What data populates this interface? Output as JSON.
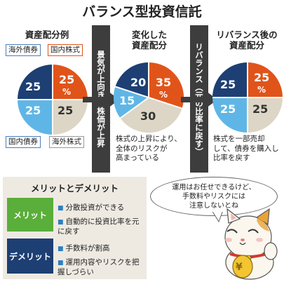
{
  "title": "バランス型投資信託",
  "col1": {
    "title": "資産配分例",
    "tags": {
      "foreign_bond": "海外債券",
      "domestic_stock": "国内株式",
      "domestic_bond": "国内債券",
      "foreign_stock": "海外株式"
    },
    "values": {
      "tl": "25",
      "tr": "25",
      "tr_unit": "%",
      "bl": "25",
      "br": "25"
    }
  },
  "arrow1": "景気が上向き、株価が上昇",
  "col2": {
    "title_line1": "変化した",
    "title_line2": "資産配分",
    "values": {
      "tl": "20",
      "tr": "35",
      "tr_unit": "%",
      "l": "15",
      "b": "30"
    },
    "desc": [
      "株式の上昇により、",
      "全体のリスクが",
      "高まっている"
    ]
  },
  "arrow2": "リバランス（元の比率に戻す）",
  "col3": {
    "title_line1": "リバランス後の",
    "title_line2": "資産配分",
    "values": {
      "tl": "25",
      "tr": "25",
      "tr_unit": "%",
      "bl": "25",
      "br": "25"
    },
    "desc": [
      "株式を一部売却",
      "して、債券を購入し",
      "比率を戻す"
    ]
  },
  "merits": {
    "title": "メリットとデメリット",
    "merit_label": "メリット",
    "merit_items": [
      "分散投資ができる",
      "自動的に投資比率を元に戻す"
    ],
    "demerit_label": "デメリット",
    "demerit_items": [
      "手数料が割高",
      "運用内容やリスクを把握しづらい"
    ]
  },
  "bubble": [
    "運用はお任せできるけど、",
    "手数料やリスクには",
    "注意しないとね"
  ],
  "cat_coin": "¥",
  "colors": {
    "navy": "#1d3f73",
    "orange": "#e0541a",
    "light_blue": "#5fb6e6",
    "beige": "#ddd6c6",
    "merit_green": "#5aae3a",
    "demerit_navy": "#1d3f73",
    "arrow": "#3d3d3d"
  }
}
